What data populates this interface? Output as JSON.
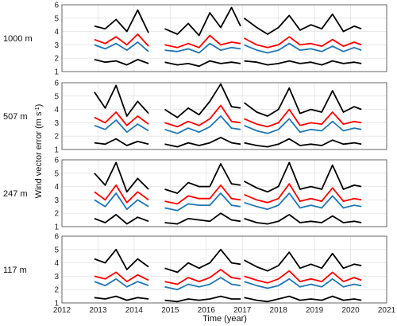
{
  "chart_data": {
    "type": "line",
    "xlabel": "Time (year)",
    "ylabel_main": "Wind vector error (m s",
    "ylabel_sup": "-1",
    "ylabel_close": ")",
    "xlim": [
      2012,
      2021
    ],
    "xticks": [
      "2012",
      "2013",
      "2014",
      "2015",
      "2016",
      "2017",
      "2018",
      "2019",
      "2020",
      "2021"
    ],
    "ylim": [
      1,
      6
    ],
    "yticks": [
      "1",
      "2",
      "3",
      "4",
      "5",
      "6"
    ],
    "grid": true,
    "gaps": [
      [
        2014.55,
        2014.85
      ],
      [
        2016.95,
        2017.05
      ]
    ],
    "series_colors": [
      "#000000",
      "#1f77b4",
      "#ff0000",
      "#000000"
    ],
    "panels": [
      {
        "label": "1000 m",
        "x": [
          2012.9,
          2013.2,
          2013.5,
          2013.8,
          2014.1,
          2014.4,
          2014.85,
          2015.2,
          2015.5,
          2015.8,
          2016.1,
          2016.4,
          2016.7,
          2016.95,
          2017.05,
          2017.4,
          2017.7,
          2018.0,
          2018.3,
          2018.6,
          2018.9,
          2019.2,
          2019.5,
          2019.8,
          2020.1,
          2020.3
        ],
        "series": [
          {
            "values": [
              1.9,
              1.7,
              1.8,
              1.5,
              1.9,
              1.6,
              1.7,
              1.5,
              1.6,
              1.4,
              1.8,
              1.6,
              1.7,
              1.6,
              1.8,
              1.7,
              1.5,
              1.6,
              1.8,
              1.6,
              1.7,
              1.5,
              1.8,
              1.6,
              1.7,
              1.6
            ]
          },
          {
            "values": [
              3.0,
              2.7,
              3.1,
              2.6,
              3.2,
              2.5,
              2.6,
              2.5,
              2.7,
              2.4,
              3.1,
              2.6,
              2.8,
              2.7,
              3.0,
              2.6,
              2.4,
              2.6,
              3.1,
              2.6,
              2.7,
              2.5,
              2.9,
              2.5,
              2.8,
              2.6
            ]
          },
          {
            "values": [
              3.4,
              3.1,
              3.6,
              3.0,
              3.8,
              2.9,
              3.0,
              2.8,
              3.1,
              2.8,
              3.7,
              3.0,
              3.2,
              3.1,
              3.5,
              3.0,
              2.8,
              3.0,
              3.6,
              3.0,
              3.1,
              2.9,
              3.4,
              2.9,
              3.2,
              3.0
            ]
          },
          {
            "values": [
              4.4,
              4.2,
              4.9,
              4.0,
              5.6,
              3.9,
              4.2,
              3.8,
              4.6,
              3.7,
              5.4,
              4.3,
              5.8,
              4.4,
              5.0,
              4.3,
              3.8,
              4.3,
              5.2,
              4.1,
              4.5,
              4.2,
              5.3,
              4.0,
              4.4,
              4.2
            ]
          }
        ]
      },
      {
        "label": "507 m",
        "x": [
          2012.9,
          2013.2,
          2013.5,
          2013.8,
          2014.1,
          2014.4,
          2014.85,
          2015.2,
          2015.5,
          2015.8,
          2016.1,
          2016.4,
          2016.7,
          2016.95,
          2017.05,
          2017.4,
          2017.7,
          2018.0,
          2018.3,
          2018.6,
          2018.9,
          2019.2,
          2019.5,
          2019.8,
          2020.1,
          2020.3
        ],
        "series": [
          {
            "values": [
              1.5,
              1.4,
              1.8,
              1.3,
              1.6,
              1.4,
              1.4,
              1.2,
              1.5,
              1.3,
              1.5,
              1.9,
              1.5,
              1.4,
              1.5,
              1.3,
              1.2,
              1.4,
              1.8,
              1.3,
              1.4,
              1.3,
              1.7,
              1.4,
              1.5,
              1.4
            ]
          },
          {
            "values": [
              2.8,
              2.5,
              3.2,
              2.3,
              2.9,
              2.4,
              2.5,
              2.2,
              2.6,
              2.3,
              2.7,
              3.5,
              2.6,
              2.5,
              2.8,
              2.4,
              2.2,
              2.5,
              3.3,
              2.3,
              2.5,
              2.4,
              3.1,
              2.4,
              2.6,
              2.5
            ]
          },
          {
            "values": [
              3.4,
              3.0,
              3.8,
              2.8,
              3.5,
              2.9,
              3.0,
              2.7,
              3.1,
              2.8,
              3.3,
              4.3,
              3.1,
              3.0,
              3.3,
              2.9,
              2.7,
              3.0,
              4.0,
              2.8,
              3.0,
              2.9,
              3.8,
              2.9,
              3.1,
              3.0
            ]
          },
          {
            "values": [
              5.3,
              4.1,
              5.8,
              3.5,
              4.6,
              3.7,
              4.0,
              3.4,
              4.1,
              3.6,
              4.6,
              5.9,
              4.2,
              4.1,
              4.5,
              3.8,
              3.5,
              4.0,
              5.6,
              3.7,
              4.0,
              3.8,
              5.4,
              3.8,
              4.2,
              4.0
            ]
          }
        ]
      },
      {
        "label": "247 m",
        "x": [
          2012.9,
          2013.2,
          2013.5,
          2013.8,
          2014.1,
          2014.4,
          2014.85,
          2015.2,
          2015.5,
          2015.8,
          2016.1,
          2016.4,
          2016.7,
          2016.95,
          2017.05,
          2017.4,
          2017.7,
          2018.0,
          2018.3,
          2018.6,
          2018.9,
          2019.2,
          2019.5,
          2019.8,
          2020.1,
          2020.3
        ],
        "series": [
          {
            "values": [
              1.6,
              1.3,
              1.9,
              1.2,
              1.7,
              1.4,
              1.3,
              1.2,
              1.6,
              1.5,
              1.4,
              2.0,
              1.5,
              1.4,
              1.6,
              1.3,
              1.2,
              1.4,
              1.9,
              1.3,
              1.4,
              1.3,
              1.8,
              1.3,
              1.4,
              1.3
            ]
          },
          {
            "values": [
              3.0,
              2.5,
              3.5,
              2.3,
              3.0,
              2.5,
              2.4,
              2.2,
              2.7,
              2.6,
              2.6,
              3.5,
              2.6,
              2.5,
              2.8,
              2.5,
              2.3,
              2.6,
              3.5,
              2.4,
              2.6,
              2.4,
              3.3,
              2.4,
              2.6,
              2.5
            ]
          },
          {
            "values": [
              3.6,
              3.0,
              4.1,
              2.8,
              3.6,
              3.0,
              2.9,
              2.7,
              3.3,
              3.1,
              3.1,
              4.1,
              3.1,
              3.0,
              3.4,
              3.0,
              2.8,
              3.1,
              4.2,
              2.9,
              3.1,
              2.9,
              3.9,
              2.9,
              3.1,
              3.0
            ]
          },
          {
            "values": [
              5.0,
              4.1,
              5.8,
              3.6,
              4.6,
              3.8,
              3.8,
              3.5,
              4.3,
              4.0,
              4.0,
              5.7,
              4.2,
              4.1,
              4.4,
              3.9,
              3.6,
              4.0,
              5.8,
              3.8,
              4.0,
              3.8,
              5.6,
              3.8,
              4.1,
              4.0
            ]
          }
        ]
      },
      {
        "label": "117 m",
        "x": [
          2012.9,
          2013.2,
          2013.5,
          2013.8,
          2014.1,
          2014.4,
          2014.85,
          2015.2,
          2015.5,
          2015.8,
          2016.1,
          2016.4,
          2016.7,
          2016.95,
          2017.05,
          2017.4,
          2017.7,
          2018.0,
          2018.3,
          2018.6,
          2018.9,
          2019.2,
          2019.5,
          2019.8,
          2020.1,
          2020.3
        ],
        "series": [
          {
            "values": [
              1.4,
              1.3,
              1.5,
              1.2,
              1.4,
              1.3,
              1.2,
              1.1,
              1.3,
              1.2,
              1.3,
              1.5,
              1.3,
              1.3,
              1.4,
              1.2,
              1.1,
              1.3,
              1.5,
              1.2,
              1.3,
              1.2,
              1.5,
              1.2,
              1.3,
              1.2
            ]
          },
          {
            "values": [
              2.6,
              2.3,
              2.8,
              2.2,
              2.6,
              2.3,
              2.2,
              2.0,
              2.4,
              2.2,
              2.4,
              2.9,
              2.4,
              2.3,
              2.6,
              2.3,
              2.1,
              2.3,
              2.8,
              2.2,
              2.4,
              2.2,
              2.8,
              2.2,
              2.4,
              2.3
            ]
          },
          {
            "values": [
              3.0,
              2.8,
              3.3,
              2.6,
              3.1,
              2.7,
              2.6,
              2.4,
              2.9,
              2.6,
              2.9,
              3.5,
              2.9,
              2.8,
              3.0,
              2.7,
              2.5,
              2.8,
              3.4,
              2.6,
              2.8,
              2.6,
              3.3,
              2.6,
              2.9,
              2.7
            ]
          },
          {
            "values": [
              4.3,
              4.0,
              5.0,
              3.5,
              4.3,
              3.7,
              3.6,
              3.3,
              4.0,
              3.6,
              4.0,
              5.0,
              4.0,
              3.9,
              4.2,
              3.7,
              3.4,
              3.8,
              4.8,
              3.6,
              3.9,
              3.6,
              4.7,
              3.6,
              3.9,
              3.8
            ]
          }
        ]
      }
    ]
  }
}
